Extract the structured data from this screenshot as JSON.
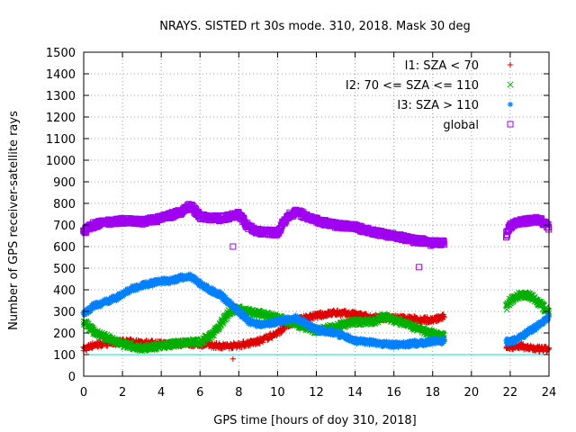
{
  "chart_data": {
    "type": "scatter",
    "title": "NRAYS. SISTED rt 30s mode. 310, 2018. Mask 30 deg",
    "xlabel": "GPS time [hours of doy 310, 2018]",
    "ylabel": "Number of GPS receiver-satellite rays",
    "xlim": [
      0,
      24
    ],
    "ylim": [
      0,
      1500
    ],
    "xticks": [
      0,
      2,
      4,
      6,
      8,
      10,
      12,
      14,
      16,
      18,
      20,
      22,
      24
    ],
    "yticks": [
      0,
      100,
      200,
      300,
      400,
      500,
      600,
      700,
      800,
      900,
      1000,
      1100,
      1200,
      1300,
      1400,
      1500
    ],
    "grid": true,
    "legend_position": "top-right",
    "reference_line": {
      "y": 100,
      "color": "#00e0e0"
    },
    "data_gaps": [
      [
        18.6,
        21.8
      ]
    ],
    "series": [
      {
        "name": "I1: SZA < 70",
        "color": "#e00000",
        "marker": "+",
        "x": [
          0,
          0.5,
          1,
          2,
          3,
          4,
          5,
          6,
          7,
          7.5,
          8,
          9,
          10,
          10.5,
          11,
          12,
          13,
          14,
          15,
          16,
          17,
          18,
          18.6,
          21.8,
          22,
          22.5,
          23,
          23.5,
          24
        ],
        "y": [
          125,
          145,
          150,
          160,
          155,
          150,
          150,
          150,
          140,
          140,
          145,
          160,
          200,
          235,
          260,
          280,
          295,
          285,
          270,
          270,
          265,
          260,
          275,
          140,
          135,
          140,
          130,
          125,
          125
        ]
      },
      {
        "name": "I2: 70 <= SZA <= 110",
        "color": "#00b000",
        "marker": "x",
        "x": [
          0,
          0.5,
          1,
          2,
          3,
          4,
          5,
          6,
          6.5,
          7,
          7.5,
          8,
          9,
          10,
          10.5,
          11,
          12,
          13,
          14,
          15,
          15.5,
          16,
          17,
          18,
          18.6,
          21.8,
          22,
          22.5,
          23,
          23.5,
          24
        ],
        "y": [
          250,
          210,
          185,
          150,
          130,
          140,
          155,
          160,
          185,
          230,
          300,
          310,
          290,
          270,
          255,
          240,
          210,
          230,
          250,
          255,
          275,
          260,
          230,
          195,
          185,
          320,
          350,
          375,
          375,
          340,
          290
        ]
      },
      {
        "name": "I3: SZA > 110",
        "color": "#0080ff",
        "marker": "*",
        "x": [
          0,
          0.5,
          1,
          1.5,
          2,
          2.5,
          3,
          4,
          4.5,
          5,
          5.5,
          6,
          6.5,
          7,
          7.5,
          8,
          8.5,
          9,
          10,
          11,
          12,
          13,
          14,
          15,
          16,
          17,
          18,
          18.6,
          21.8,
          22,
          22.5,
          23,
          23.5,
          24
        ],
        "y": [
          290,
          325,
          340,
          355,
          380,
          405,
          420,
          440,
          440,
          455,
          460,
          430,
          400,
          380,
          340,
          300,
          255,
          240,
          250,
          270,
          215,
          200,
          165,
          155,
          145,
          150,
          160,
          165,
          160,
          160,
          180,
          210,
          240,
          275
        ]
      },
      {
        "name": "global",
        "color": "#a000f0",
        "marker": "square",
        "x": [
          0,
          0.5,
          1,
          2,
          3,
          4,
          5,
          5.5,
          6,
          7,
          7.5,
          8,
          8.5,
          9,
          10,
          10.5,
          11,
          12,
          13,
          14,
          15,
          16,
          17,
          17.5,
          18,
          18.6,
          21.8,
          22,
          22.5,
          23,
          23.5,
          24
        ],
        "y": [
          670,
          700,
          710,
          720,
          715,
          730,
          760,
          790,
          740,
          730,
          740,
          750,
          690,
          670,
          665,
          740,
          760,
          720,
          700,
          690,
          665,
          650,
          630,
          625,
          615,
          620,
          655,
          695,
          715,
          720,
          725,
          690
        ],
        "outliers": [
          {
            "x": 7.7,
            "y": 600
          },
          {
            "x": 17.3,
            "y": 505
          }
        ]
      },
      {
        "name": "I1 outlier",
        "legend": false,
        "color": "#e00000",
        "marker": "+",
        "x": [
          7.7
        ],
        "y": [
          80
        ]
      }
    ]
  }
}
